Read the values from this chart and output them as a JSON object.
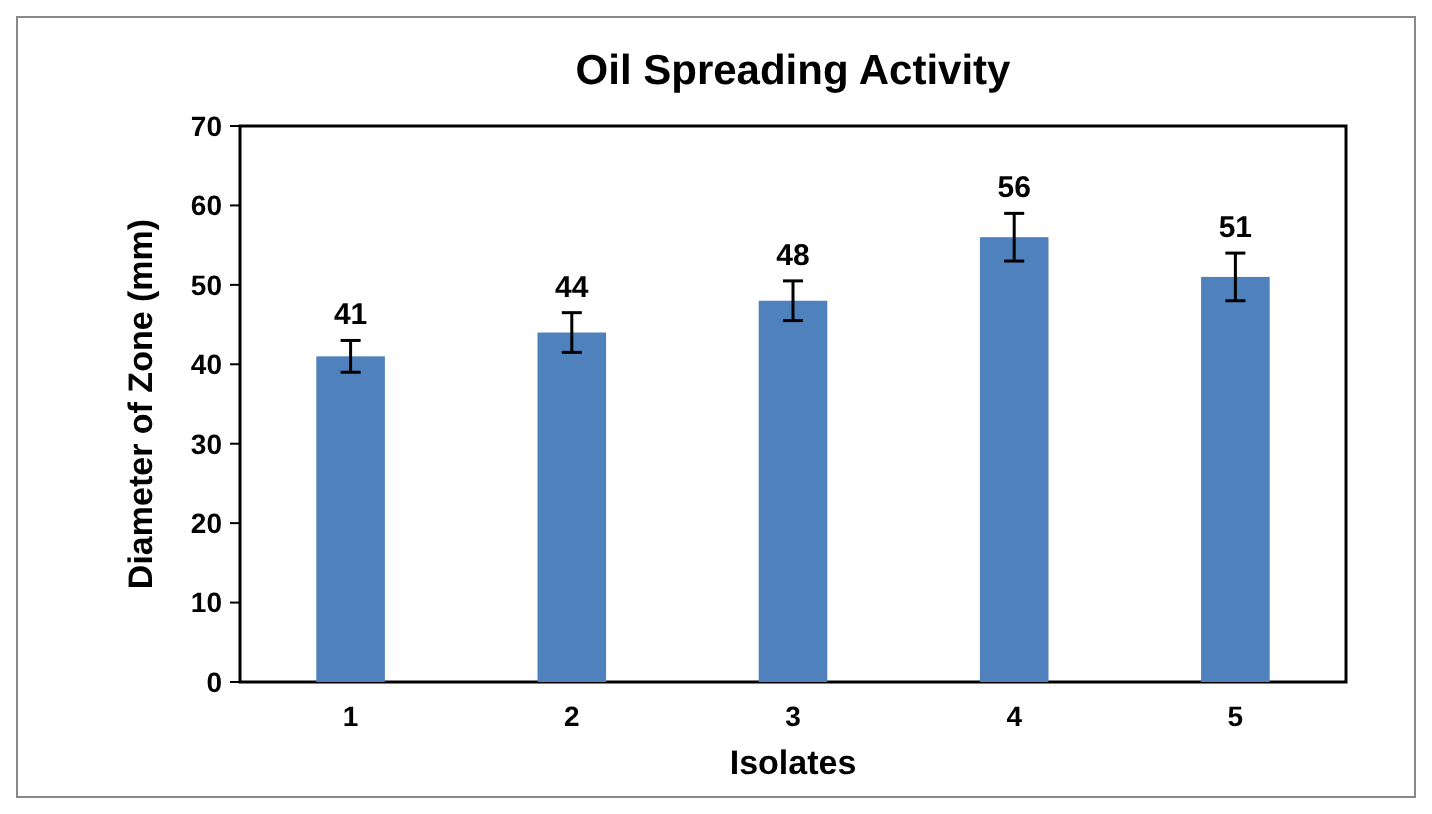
{
  "chart_data": {
    "type": "bar",
    "title": "Oil Spreading Activity",
    "xlabel": "Isolates",
    "ylabel": "Diameter of Zone (mm)",
    "categories": [
      "1",
      "2",
      "3",
      "4",
      "5"
    ],
    "values": [
      41,
      44,
      48,
      56,
      51
    ],
    "errors": [
      2,
      2.5,
      2.5,
      3,
      3
    ],
    "color": "#4f81bd",
    "data_labels": true,
    "ylim": [
      0,
      70
    ],
    "yticks": [
      0,
      10,
      20,
      30,
      40,
      50,
      60,
      70
    ],
    "grid": false
  }
}
